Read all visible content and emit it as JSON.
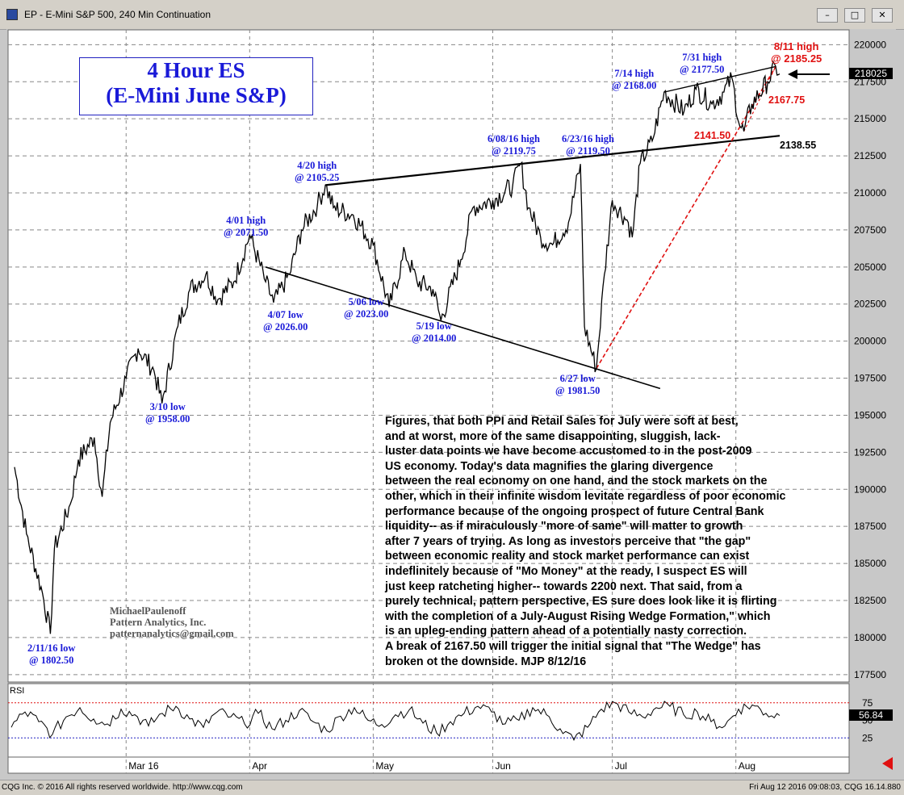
{
  "window": {
    "title": "EP - E-Mini S&P 500, 240 Min Continuation",
    "buttons": [
      "–",
      "□",
      "✕"
    ]
  },
  "footer": {
    "left": "CQG Inc. © 2016 All rights reserved worldwide. http://www.cqg.com",
    "right": "Fri Aug 12 2016 09:08:03, CQG 16.14.880"
  },
  "chart_title": {
    "line1": "4 Hour ES",
    "line2": "(E-Mini June S&P)"
  },
  "credits": [
    "MichaelPaulenoff",
    "Pattern Analytics, Inc.",
    "patternanalytics@gmail.com"
  ],
  "commentary": "Figures, that both PPI and Retail Sales for July were soft at best,\nand at worst, more of the same disappointing, sluggish, lack-\nluster data points we have become accustomed to in the post-2009\nUS economy. Today's data magnifies the glaring divergence\nbetween the real economy on one hand, and the stock markets on the\nother, which in their infinite wisdom levitate regardless of poor economic\nperformance because of the ongoing prospect of future Central Bank\nliquidity-- as if miraculously \"more of same\" will matter to growth\nafter 7 years of trying. As long as investors perceive that \"the gap\"\nbetween economic reality and stock market performance can exist\nindeflinitely because of \"Mo Money\" at the ready, I suspect ES will\njust keep ratcheting higher-- towards 2200 next. That said, from a\npurely technical, pattern perspective, ES sure does look like it is flirting\nwith the completion of a July-August Rising Wedge Formation,\" which\nis an upleg-ending pattern ahead of a potentially nasty correction.\nA break of 2167.50 will trigger the initial signal that \"The Wedge\" has\nbroken ot the downside.  MJP 8/12/16",
  "annotations": [
    {
      "l1": "2/11/16 low",
      "l2": "@ 1802.50"
    },
    {
      "l1": "3/10 low",
      "l2": "@ 1958.00"
    },
    {
      "l1": "4/01 high",
      "l2": "@ 2071.50"
    },
    {
      "l1": "4/07 low",
      "l2": "@ 2026.00"
    },
    {
      "l1": "4/20 high",
      "l2": "@ 2105.25"
    },
    {
      "l1": "5/06 low",
      "l2": "@ 2023.00"
    },
    {
      "l1": "5/19 low",
      "l2": "@ 2014.00"
    },
    {
      "l1": "6/08/16 high",
      "l2": "@ 2119.75"
    },
    {
      "l1": "6/23/16 high",
      "l2": "@ 2119.50"
    },
    {
      "l1": "6/27 low",
      "l2": "@ 1981.50"
    },
    {
      "l1": "7/14 high",
      "l2": "@ 2168.00"
    },
    {
      "l1": "7/31 high",
      "l2": "@ 2177.50"
    }
  ],
  "red_annotations": {
    "high_l1": "8/11 high",
    "high_l2": "@ 2185.25",
    "lvl1": "2167.75",
    "lvl2": "2141.50"
  },
  "black_label": "2138.55",
  "price_tag": "218025",
  "rsi": {
    "label": "RSI",
    "value": "56.84",
    "ticks": [
      "75",
      "50",
      "25"
    ]
  },
  "colors": {
    "chart_bg": "#ffffff",
    "price": "#000000",
    "annotation": "#1a1ad8",
    "red": "#e01010",
    "rsi_line_upper": "#e01010",
    "rsi_line_lower": "#2020c0"
  },
  "chart_data": {
    "type": "line",
    "title": "4 Hour ES",
    "subtitle": "(E-Mini June S&P)",
    "xlabel": "",
    "ylabel": "",
    "x_ticks": [
      "Mar 16",
      "Apr",
      "May",
      "Jun",
      "Jul",
      "Aug"
    ],
    "y_ticks": [
      "220000",
      "217500",
      "215000",
      "212500",
      "210000",
      "207500",
      "205000",
      "202500",
      "200000",
      "197500",
      "195000",
      "192500",
      "190000",
      "187500",
      "185000",
      "182500",
      "180000",
      "177500"
    ],
    "ylim": [
      1770,
      2210
    ],
    "grid": true,
    "series": [
      {
        "values": [
          [
            "2016-02-02",
            1915
          ],
          [
            "2016-02-05",
            1870
          ],
          [
            "2016-02-09",
            1830
          ],
          [
            "2016-02-11",
            1802.5
          ],
          [
            "2016-02-12",
            1860
          ],
          [
            "2016-02-16",
            1890
          ],
          [
            "2016-02-18",
            1920
          ],
          [
            "2016-02-22",
            1935
          ],
          [
            "2016-02-24",
            1895
          ],
          [
            "2016-02-26",
            1945
          ],
          [
            "2016-03-01",
            1975
          ],
          [
            "2016-03-04",
            1995
          ],
          [
            "2016-03-08",
            1980
          ],
          [
            "2016-03-10",
            1958
          ],
          [
            "2016-03-14",
            2010
          ],
          [
            "2016-03-17",
            2035
          ],
          [
            "2016-03-21",
            2045
          ],
          [
            "2016-03-24",
            2028
          ],
          [
            "2016-03-28",
            2040
          ],
          [
            "2016-04-01",
            2071.5
          ],
          [
            "2016-04-05",
            2040
          ],
          [
            "2016-04-07",
            2026
          ],
          [
            "2016-04-11",
            2045
          ],
          [
            "2016-04-14",
            2075
          ],
          [
            "2016-04-18",
            2092
          ],
          [
            "2016-04-20",
            2105.25
          ],
          [
            "2016-04-22",
            2090
          ],
          [
            "2016-04-27",
            2085
          ],
          [
            "2016-05-02",
            2065
          ],
          [
            "2016-05-06",
            2023
          ],
          [
            "2016-05-10",
            2060
          ],
          [
            "2016-05-13",
            2040
          ],
          [
            "2016-05-17",
            2035
          ],
          [
            "2016-05-19",
            2014
          ],
          [
            "2016-05-24",
            2055
          ],
          [
            "2016-05-27",
            2090
          ],
          [
            "2016-06-01",
            2095
          ],
          [
            "2016-06-06",
            2105
          ],
          [
            "2016-06-08",
            2119.75
          ],
          [
            "2016-06-10",
            2090
          ],
          [
            "2016-06-13",
            2070
          ],
          [
            "2016-06-16",
            2065
          ],
          [
            "2016-06-20",
            2080
          ],
          [
            "2016-06-23",
            2119.5
          ],
          [
            "2016-06-24",
            2010
          ],
          [
            "2016-06-27",
            1981.5
          ],
          [
            "2016-06-29",
            2045
          ],
          [
            "2016-07-01",
            2095
          ],
          [
            "2016-07-05",
            2080
          ],
          [
            "2016-07-06",
            2070
          ],
          [
            "2016-07-08",
            2120
          ],
          [
            "2016-07-11",
            2135
          ],
          [
            "2016-07-14",
            2168
          ],
          [
            "2016-07-19",
            2155
          ],
          [
            "2016-07-22",
            2170
          ],
          [
            "2016-07-26",
            2160
          ],
          [
            "2016-07-29",
            2168
          ],
          [
            "2016-07-31",
            2177.5
          ],
          [
            "2016-08-02",
            2145
          ],
          [
            "2016-08-03",
            2141.5
          ],
          [
            "2016-08-05",
            2160
          ],
          [
            "2016-08-09",
            2175
          ],
          [
            "2016-08-11",
            2185.25
          ],
          [
            "2016-08-12",
            2180.25
          ]
        ]
      }
    ],
    "lines": [
      {
        "name": "upper trendline",
        "points": [
          [
            "2016-04-20",
            2105.25
          ],
          [
            "2016-08-12",
            2138.55
          ]
        ]
      },
      {
        "name": "lower trendline",
        "points": [
          [
            "2016-04-05",
            2050
          ],
          [
            "2016-07-13",
            1968
          ]
        ]
      },
      {
        "name": "wedge upper",
        "points": [
          [
            "2016-07-14",
            2168
          ],
          [
            "2016-08-11",
            2185.25
          ]
        ]
      },
      {
        "name": "wedge lower",
        "points": [
          [
            "2016-06-27",
            1981.5
          ],
          [
            "2016-08-11",
            2185.25
          ]
        ]
      },
      {
        "name": "wedge lower 2",
        "points": [
          [
            "2016-08-03",
            2141.5
          ],
          [
            "2016-08-11",
            2185.25
          ]
        ]
      }
    ],
    "rsi_values": [
      40,
      62,
      48,
      30,
      55,
      68,
      52,
      45,
      66,
      58,
      42,
      60,
      70,
      52,
      40,
      62,
      55,
      45,
      60,
      38,
      50,
      64,
      48,
      35,
      56,
      68,
      50,
      44,
      58,
      65,
      46,
      32,
      48,
      60,
      70,
      62,
      45,
      50,
      68,
      58,
      38,
      22,
      40,
      66,
      75,
      62,
      55,
      68,
      70,
      58,
      62,
      48,
      42,
      66,
      72,
      60,
      56.84
    ],
    "rsi_ylim": [
      0,
      100
    ]
  }
}
